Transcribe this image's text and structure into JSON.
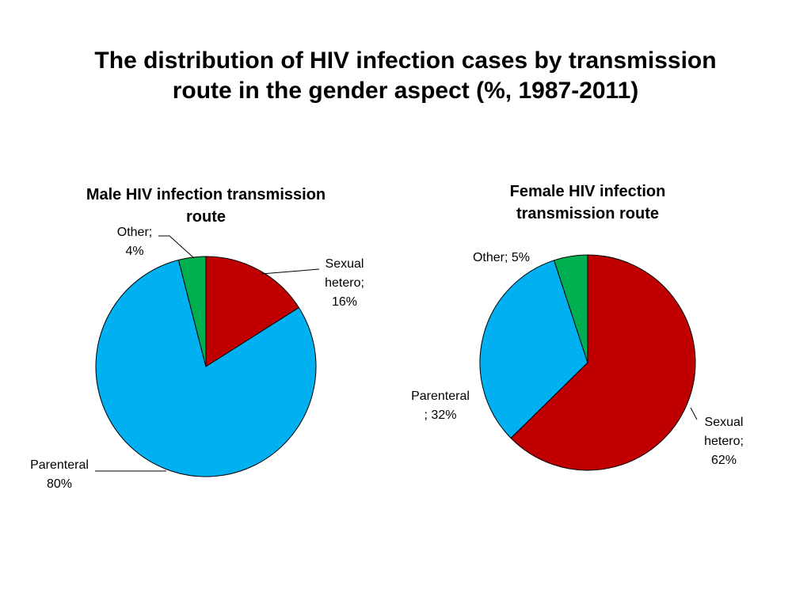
{
  "slide": {
    "title_lines": [
      "The distribution of HIV infection cases by transmission",
      "route in the gender aspect (%, 1987-2011)"
    ]
  },
  "chart_data": [
    {
      "type": "pie",
      "title_lines": [
        "Male HIV infection transmission",
        "route"
      ],
      "slices": [
        {
          "category": "Sexual hetero",
          "value": 16,
          "color": "#c00000",
          "label_lines": [
            "Sexual",
            "hetero;",
            "16%"
          ]
        },
        {
          "category": "Parenteral",
          "value": 80,
          "color": "#00b0f0",
          "label_lines": [
            "Parenteral",
            "80%"
          ]
        },
        {
          "category": "Other",
          "value": 4,
          "color": "#00b050",
          "label_lines": [
            "Other;",
            "4%"
          ]
        }
      ]
    },
    {
      "type": "pie",
      "title_lines": [
        "Female HIV infection",
        "transmission route"
      ],
      "slices": [
        {
          "category": "Sexual hetero",
          "value": 62,
          "color": "#c00000",
          "label_lines": [
            "Sexual",
            "hetero;",
            "62%"
          ]
        },
        {
          "category": "Parenteral",
          "value": 32,
          "color": "#00b0f0",
          "label_lines": [
            "Parenteral",
            "; 32%"
          ]
        },
        {
          "category": "Other",
          "value": 5,
          "color": "#00b050",
          "label_lines": [
            "Other; 5%"
          ]
        }
      ]
    }
  ]
}
